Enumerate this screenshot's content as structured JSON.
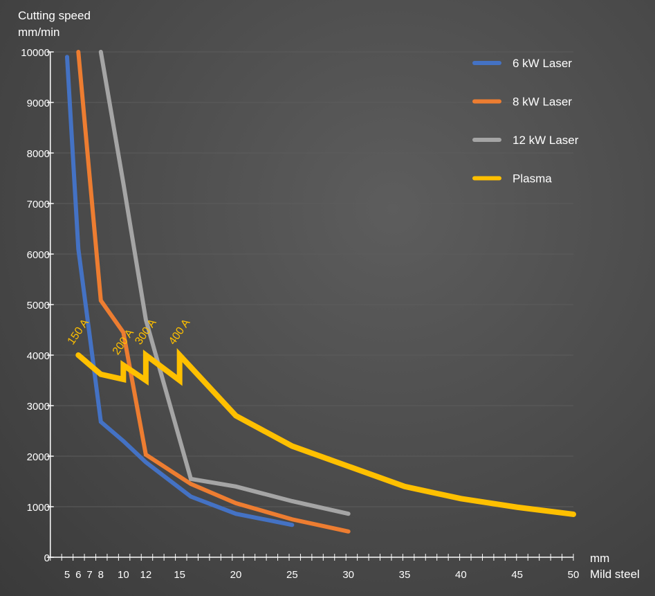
{
  "chart_data": {
    "type": "line",
    "ylabel_line1": "Cutting speed",
    "ylabel_line2": "mm/min",
    "xlabel_unit": "mm",
    "xlabel": "Mild steel",
    "ylim": [
      0,
      10000
    ],
    "xlim": [
      4,
      50
    ],
    "yticks": [
      0,
      1000,
      2000,
      3000,
      4000,
      5000,
      6000,
      7000,
      8000,
      9000,
      10000
    ],
    "xticks": [
      5,
      6,
      7,
      8,
      10,
      12,
      15,
      20,
      25,
      30,
      35,
      40,
      45,
      50
    ],
    "grid": true,
    "legend_position": "top-right",
    "series": [
      {
        "name": "6 kW Laser",
        "color": "#4472c4",
        "points": [
          [
            5,
            9900
          ],
          [
            6,
            6100
          ],
          [
            7,
            4400
          ],
          [
            8,
            2680
          ],
          [
            10,
            2300
          ],
          [
            12,
            1880
          ],
          [
            16,
            1200
          ],
          [
            20,
            860
          ],
          [
            25,
            640
          ]
        ]
      },
      {
        "name": "8 kW Laser",
        "color": "#ed7d31",
        "points": [
          [
            6,
            10000
          ],
          [
            8,
            5080
          ],
          [
            10,
            4450
          ],
          [
            12,
            2030
          ],
          [
            16,
            1450
          ],
          [
            20,
            1070
          ],
          [
            25,
            750
          ],
          [
            30,
            510
          ]
        ]
      },
      {
        "name": "12 kW Laser",
        "color": "#a5a5a5",
        "points": [
          [
            8,
            10000
          ],
          [
            10,
            7400
          ],
          [
            12,
            4700
          ],
          [
            16,
            1550
          ],
          [
            20,
            1400
          ],
          [
            25,
            1110
          ],
          [
            30,
            860
          ]
        ]
      },
      {
        "name": "Plasma",
        "color": "#ffc000",
        "points": [
          [
            6,
            4000
          ],
          [
            8,
            3620
          ],
          [
            10,
            3520
          ],
          [
            10,
            3800
          ],
          [
            12,
            3500
          ],
          [
            12,
            4000
          ],
          [
            15,
            3500
          ],
          [
            15,
            4000
          ],
          [
            20,
            2800
          ],
          [
            25,
            2200
          ],
          [
            30,
            1800
          ],
          [
            35,
            1400
          ],
          [
            40,
            1160
          ],
          [
            45,
            990
          ],
          [
            50,
            850
          ]
        ]
      }
    ],
    "annotations": [
      {
        "text": "150 A",
        "x": 6,
        "y": 4000
      },
      {
        "text": "200 A",
        "x": 10,
        "y": 3800
      },
      {
        "text": "300 A",
        "x": 12,
        "y": 4000
      },
      {
        "text": "400 A",
        "x": 15,
        "y": 4000
      }
    ]
  }
}
